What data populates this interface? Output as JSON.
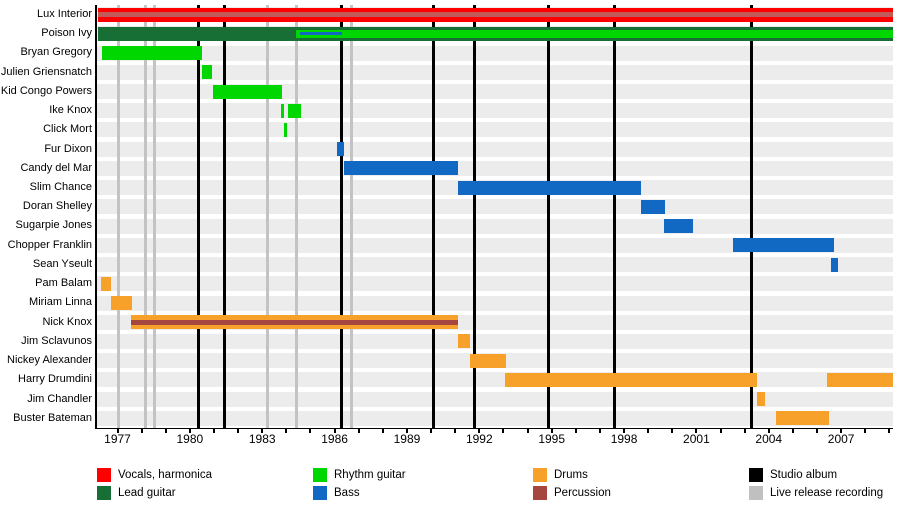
{
  "chart_data": {
    "type": "bar",
    "subtype": "band-members-timeline-gantt",
    "title": "",
    "xlabel": "",
    "ylabel": "",
    "grid": "off",
    "legend_position": "bottom",
    "x_axis": {
      "start": 1976.15,
      "end": 2009.15,
      "labeled_years": [
        1977,
        1980,
        1983,
        1986,
        1989,
        1992,
        1995,
        1998,
        2001,
        2004,
        2007
      ],
      "minor_tick_step_years": 1
    },
    "role_colors": {
      "vocals": "#fe0000",
      "vocals_shade": "#c25a5a",
      "lead_guitar": "#186f36",
      "rhythm_guitar": "#00d700",
      "bass": "#1269c4",
      "drums": "#f8a12a",
      "percussion": "#a6473f",
      "studio_album": "#000000",
      "live_release": "#c3c3c3",
      "row_band": "#ececec"
    },
    "members": [
      {
        "name": "Lux Interior",
        "segments": [
          {
            "role": "vocals",
            "from": 1976.2,
            "to": 2009.15
          }
        ],
        "stripes": [
          {
            "role": "vocals_shade",
            "from": 1976.2,
            "to": 2009.15,
            "size": "mid"
          }
        ]
      },
      {
        "name": "Poison Ivy",
        "segments": [
          {
            "role": "lead_guitar",
            "from": 1976.2,
            "to": 2009.15
          }
        ],
        "stripes": [
          {
            "role": "rhythm_guitar",
            "from": 1984.4,
            "to": 2009.15,
            "size": "thick"
          },
          {
            "role": "bass",
            "from": 1984.55,
            "to": 1986.3,
            "size": "thin"
          }
        ]
      },
      {
        "name": "Bryan Gregory",
        "segments": [
          {
            "role": "rhythm_guitar",
            "from": 1976.35,
            "to": 1980.5
          }
        ]
      },
      {
        "name": "Julien Griensnatch",
        "segments": [
          {
            "role": "rhythm_guitar",
            "from": 1980.5,
            "to": 1980.9
          }
        ]
      },
      {
        "name": "Kid Congo Powers",
        "segments": [
          {
            "role": "rhythm_guitar",
            "from": 1980.95,
            "to": 1983.8
          }
        ]
      },
      {
        "name": "Ike Knox",
        "segments": [
          {
            "role": "rhythm_guitar",
            "from": 1983.78,
            "to": 1983.92
          },
          {
            "role": "rhythm_guitar",
            "from": 1984.08,
            "to": 1984.62
          }
        ]
      },
      {
        "name": "Click Mort",
        "segments": [
          {
            "role": "rhythm_guitar",
            "from": 1983.9,
            "to": 1984.02
          }
        ]
      },
      {
        "name": "Fur Dixon",
        "segments": [
          {
            "role": "bass",
            "from": 1986.1,
            "to": 1986.4
          }
        ]
      },
      {
        "name": "Candy del Mar",
        "segments": [
          {
            "role": "bass",
            "from": 1986.4,
            "to": 1991.1
          }
        ]
      },
      {
        "name": "Slim Chance",
        "segments": [
          {
            "role": "bass",
            "from": 1991.1,
            "to": 1998.7
          }
        ]
      },
      {
        "name": "Doran Shelley",
        "segments": [
          {
            "role": "bass",
            "from": 1998.7,
            "to": 1999.7
          }
        ]
      },
      {
        "name": "Sugarpie Jones",
        "segments": [
          {
            "role": "bass",
            "from": 1999.65,
            "to": 2000.85
          }
        ]
      },
      {
        "name": "Chopper Franklin",
        "segments": [
          {
            "role": "bass",
            "from": 2002.5,
            "to": 2006.7
          }
        ]
      },
      {
        "name": "Sean Yseult",
        "segments": [
          {
            "role": "bass",
            "from": 2006.6,
            "to": 2006.85
          }
        ]
      },
      {
        "name": "Pam Balam",
        "segments": [
          {
            "role": "drums",
            "from": 1976.3,
            "to": 1976.75
          }
        ]
      },
      {
        "name": "Miriam Linna",
        "segments": [
          {
            "role": "drums",
            "from": 1976.75,
            "to": 1977.6
          }
        ]
      },
      {
        "name": "Nick Knox",
        "segments": [
          {
            "role": "drums",
            "from": 1977.55,
            "to": 1991.1
          }
        ],
        "stripes": [
          {
            "role": "percussion",
            "from": 1977.55,
            "to": 1991.1,
            "size": "mid"
          }
        ]
      },
      {
        "name": "Jim Sclavunos",
        "segments": [
          {
            "role": "drums",
            "from": 1991.1,
            "to": 1991.6
          }
        ]
      },
      {
        "name": "Nickey Alexander",
        "segments": [
          {
            "role": "drums",
            "from": 1991.6,
            "to": 1993.1
          }
        ]
      },
      {
        "name": "Harry Drumdini",
        "segments": [
          {
            "role": "drums",
            "from": 1993.05,
            "to": 2003.5
          },
          {
            "role": "drums",
            "from": 2006.4,
            "to": 2009.15
          }
        ]
      },
      {
        "name": "Jim Chandler",
        "segments": [
          {
            "role": "drums",
            "from": 2003.5,
            "to": 2003.85
          }
        ]
      },
      {
        "name": "Buster Bateman",
        "segments": [
          {
            "role": "drums",
            "from": 2004.3,
            "to": 2006.5
          }
        ]
      }
    ],
    "events": {
      "studio_albums": [
        1980.35,
        1981.45,
        1986.3,
        1990.1,
        1991.8,
        1994.85,
        1997.6,
        2003.3
      ],
      "live_release_recordings": [
        1977.05,
        1978.15,
        1978.55,
        1983.2,
        1984.4,
        1986.7
      ]
    },
    "legend": [
      {
        "label": "Vocals, harmonica",
        "color": "#fe0000",
        "col": 0,
        "row": 0
      },
      {
        "label": "Lead guitar",
        "color": "#186f36",
        "col": 0,
        "row": 1
      },
      {
        "label": "Rhythm guitar",
        "color": "#00d700",
        "col": 1,
        "row": 0
      },
      {
        "label": "Bass",
        "color": "#1269c4",
        "col": 1,
        "row": 1
      },
      {
        "label": "Drums",
        "color": "#f8a12a",
        "col": 2,
        "row": 0
      },
      {
        "label": "Percussion",
        "color": "#a6473f",
        "col": 2,
        "row": 1
      },
      {
        "label": "Studio album",
        "color": "#000000",
        "col": 3,
        "row": 0
      },
      {
        "label": "Live release recording",
        "color": "#c0c0c0",
        "col": 3,
        "row": 1
      }
    ]
  }
}
